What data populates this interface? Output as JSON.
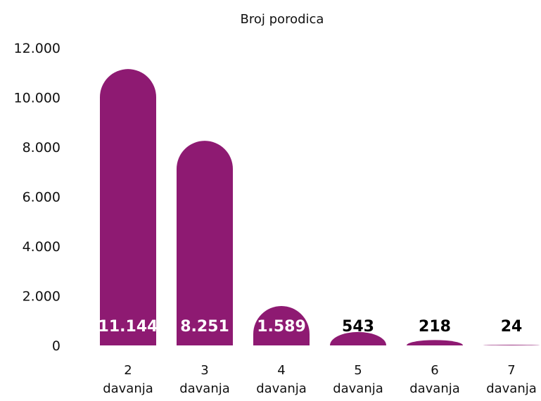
{
  "chart_data": {
    "type": "bar",
    "title": "Broj porodica",
    "categories": [
      [
        "2",
        "davanja"
      ],
      [
        "3",
        "davanja"
      ],
      [
        "4",
        "davanja"
      ],
      [
        "5",
        "davanja"
      ],
      [
        "6",
        "davanja"
      ],
      [
        "7",
        "davanja"
      ]
    ],
    "values": [
      11144,
      8251,
      1589,
      543,
      218,
      24
    ],
    "value_labels": [
      "11.144",
      "8.251",
      "1.589",
      "543",
      "218",
      "24"
    ],
    "yticks": [
      "0",
      "2.000",
      "4.000",
      "6.000",
      "8.000",
      "10.000",
      "12.000"
    ],
    "ylim": [
      0,
      12000
    ],
    "grid": false,
    "legend": "none",
    "bar_color": "#8e1a72"
  }
}
